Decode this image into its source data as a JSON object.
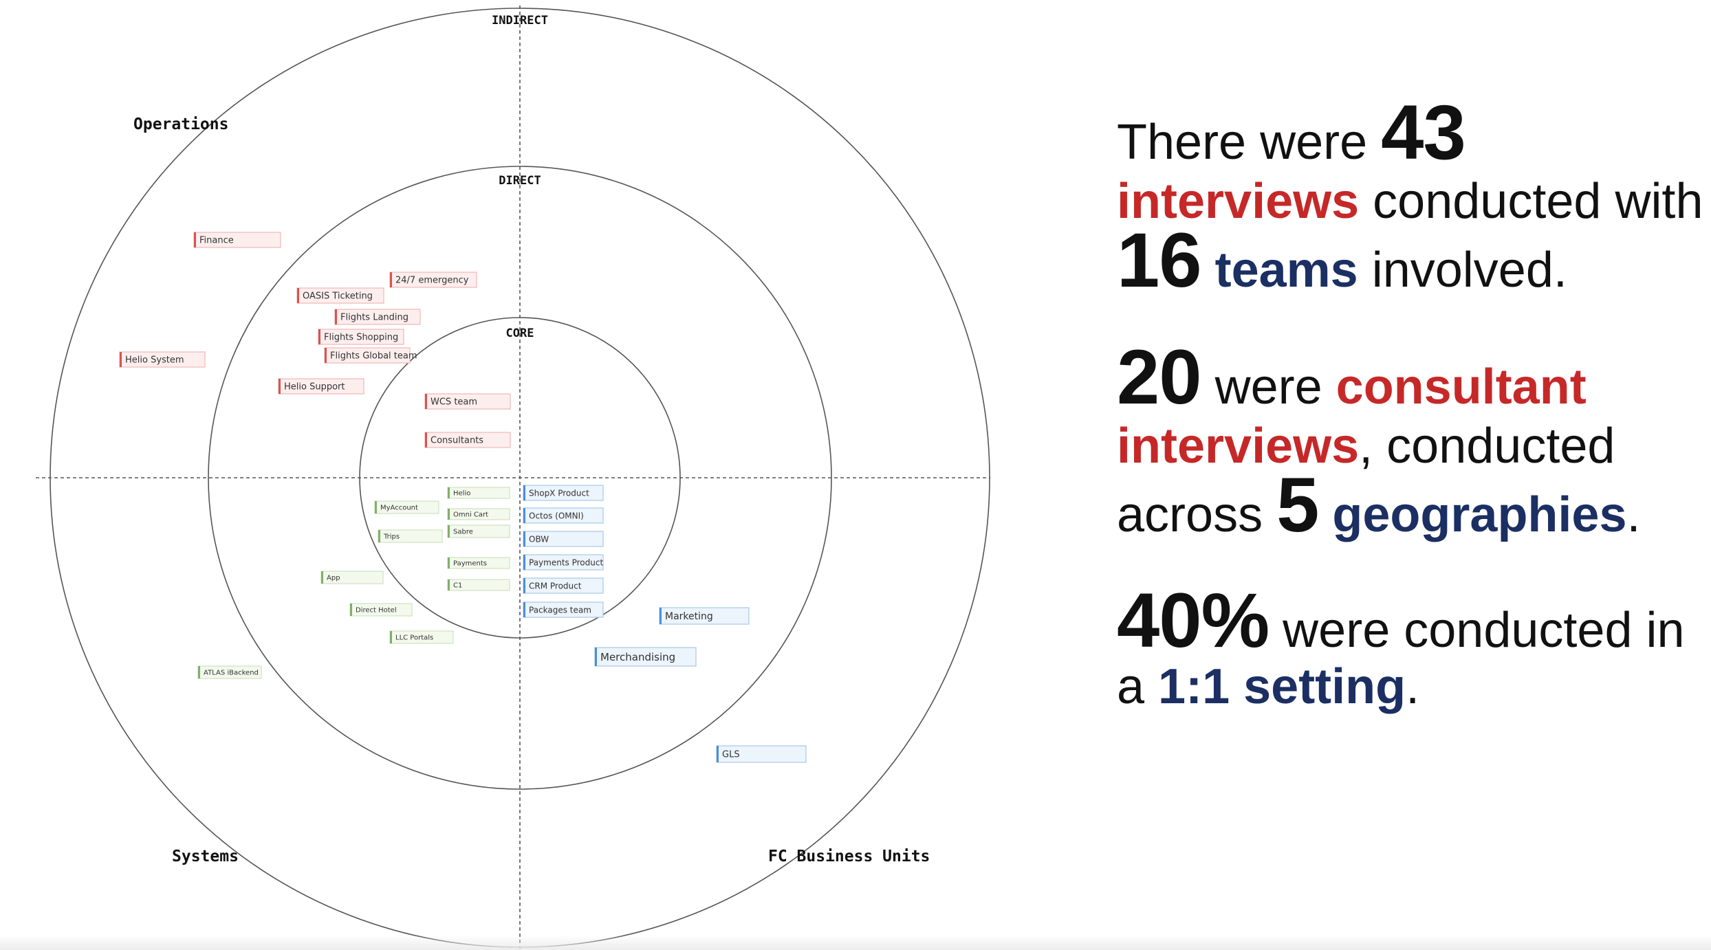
{
  "diagram": {
    "rings": [
      "INDIRECT",
      "DIRECT",
      "CORE"
    ],
    "quadrants": [
      "Operations",
      "Systems",
      "FC Business Units"
    ],
    "tags": [
      {
        "label": "Finance",
        "group": "operations"
      },
      {
        "label": "24/7 emergency",
        "group": "operations"
      },
      {
        "label": "OASIS Ticketing",
        "group": "operations"
      },
      {
        "label": "Flights Landing",
        "group": "operations"
      },
      {
        "label": "Flights Shopping",
        "group": "operations"
      },
      {
        "label": "Flights Global team",
        "group": "operations"
      },
      {
        "label": "Helio System",
        "group": "operations"
      },
      {
        "label": "Helio Support",
        "group": "operations"
      },
      {
        "label": "WCS team",
        "group": "operations"
      },
      {
        "label": "Consultants",
        "group": "operations"
      },
      {
        "label": "Helio",
        "group": "systems"
      },
      {
        "label": "MyAccount",
        "group": "systems"
      },
      {
        "label": "Omni Cart",
        "group": "systems"
      },
      {
        "label": "Sabre",
        "group": "systems"
      },
      {
        "label": "Trips",
        "group": "systems"
      },
      {
        "label": "Payments",
        "group": "systems"
      },
      {
        "label": "App",
        "group": "systems"
      },
      {
        "label": "C1",
        "group": "systems"
      },
      {
        "label": "Direct Hotel",
        "group": "systems"
      },
      {
        "label": "LLC Portals",
        "group": "systems"
      },
      {
        "label": "ATLAS iBackend",
        "group": "systems"
      },
      {
        "label": "ShopX Product",
        "group": "business"
      },
      {
        "label": "Octos (OMNI)",
        "group": "business"
      },
      {
        "label": "OBW",
        "group": "business"
      },
      {
        "label": "Payments Product",
        "group": "business"
      },
      {
        "label": "CRM Product",
        "group": "business"
      },
      {
        "label": "Packages team",
        "group": "business"
      },
      {
        "label": "Marketing",
        "group": "business"
      },
      {
        "label": "Merchandising",
        "group": "business"
      },
      {
        "label": "GLS",
        "group": "business"
      }
    ],
    "colors": {
      "operations": {
        "fill": "#fdeeee",
        "edge": "#d9534f",
        "border": "#f1b7b5"
      },
      "systems": {
        "fill": "#f3f9ec",
        "edge": "#7fb069",
        "border": "#cfe3c2"
      },
      "business": {
        "fill": "#ecf4fc",
        "edge": "#4a90d9",
        "border": "#a9c9ea"
      }
    }
  },
  "stats": {
    "s1": {
      "p1": "There were ",
      "n1": "43",
      "p2": "interviews",
      "p3": " conducted with ",
      "n2": "16",
      "p4": "teams",
      "p5": " involved."
    },
    "s2": {
      "n1": "20",
      "p1": " were ",
      "p2": "consultant interviews",
      "p3": ", conducted across ",
      "n2": "5",
      "p4": "geographies",
      "p5": "."
    },
    "s3": {
      "n1": "40%",
      "p1": " were conducted in a ",
      "p2": "1:1 setting",
      "p3": "."
    }
  },
  "colors": {
    "accent_red": "#c62828",
    "accent_navy": "#1b2f63"
  }
}
